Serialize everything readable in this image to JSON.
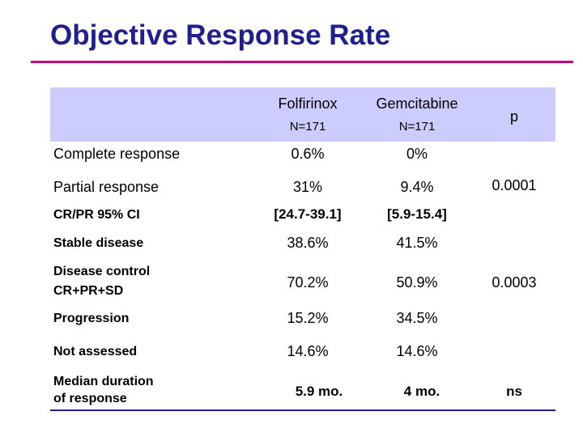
{
  "title": "Objective Response Rate",
  "columns": {
    "folfirinox": "Folfirinox",
    "folfirinox_n": "N=171",
    "gemcitabine": "Gemcitabine",
    "gemcitabine_n": "N=171",
    "p": "p"
  },
  "rows": [
    {
      "label": "Complete response",
      "folfirinox": "0.6%",
      "gemcitabine": "0%"
    },
    {
      "label": "Partial response",
      "folfirinox": "31%",
      "gemcitabine": "9.4%"
    },
    {
      "label": "CR/PR 95% CI",
      "folfirinox": "[24.7-39.1]",
      "gemcitabine": "[5.9-15.4]"
    },
    {
      "label": "Stable disease",
      "folfirinox": "38.6%",
      "gemcitabine": "41.5%"
    },
    {
      "label": "Disease control",
      "label2": "CR+PR+SD",
      "folfirinox": "70.2%",
      "gemcitabine": "50.9%"
    },
    {
      "label": "Progression",
      "folfirinox": "15.2%",
      "gemcitabine": "34.5%"
    },
    {
      "label": "Not assessed",
      "folfirinox": "14.6%",
      "gemcitabine": "14.6%"
    },
    {
      "label": "Median duration",
      "label2": "of response",
      "folfirinox": "5.9 mo.",
      "gemcitabine": "4 mo."
    }
  ],
  "p_values": {
    "response": "0.0001",
    "disease_control": "0.0003",
    "median_duration": "ns"
  },
  "colors": {
    "title": "#1f1f8e",
    "title_rule": "#c8007a",
    "header_band": "#ccccff",
    "table_rule": "#1f1f8e"
  }
}
